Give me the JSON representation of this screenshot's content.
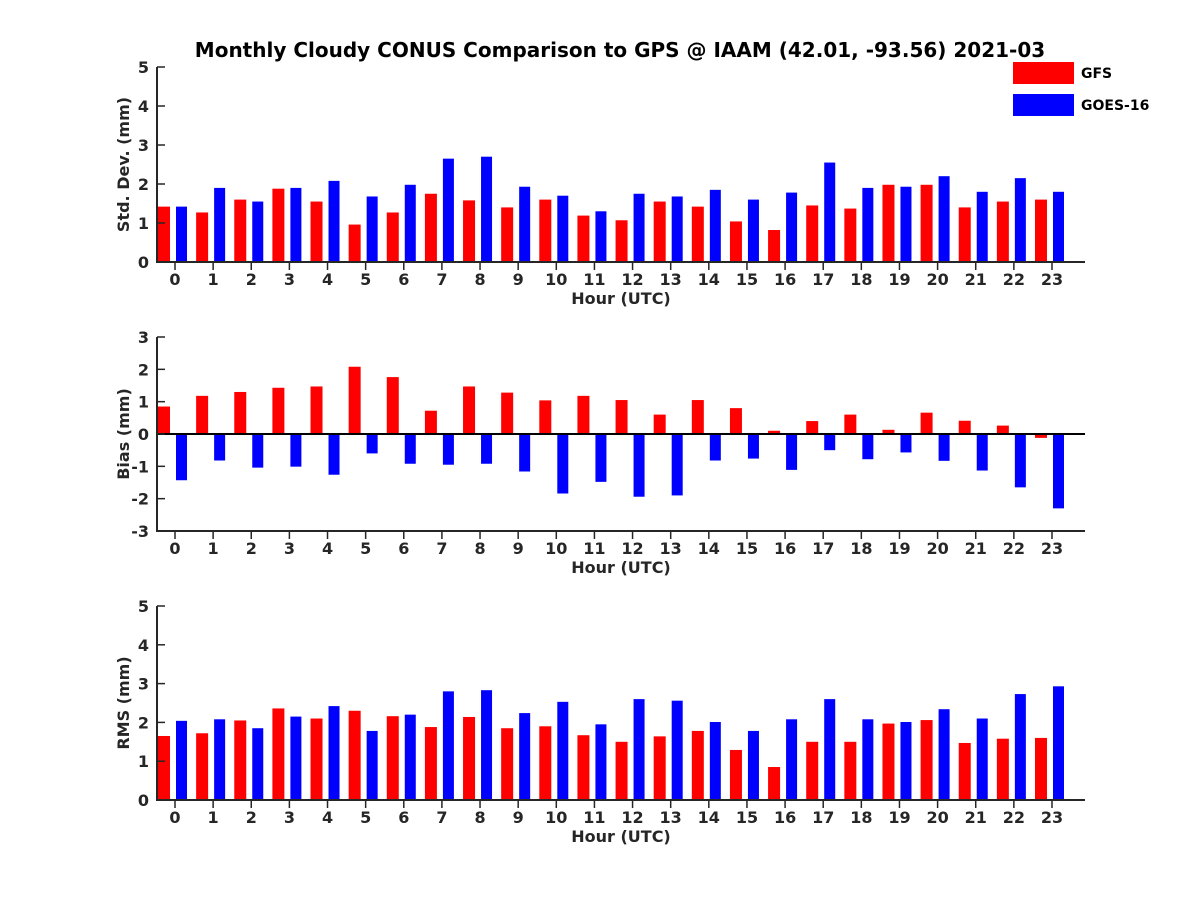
{
  "chart_data": {
    "title": "Monthly Cloudy CONUS Comparison to GPS @ IAAM (42.01, -93.56) 2021-03",
    "legend": {
      "placement": "top-right",
      "entries": [
        {
          "name": "GFS",
          "color": "#ff0000"
        },
        {
          "name": "GOES-16",
          "color": "#0000ff"
        }
      ]
    },
    "panels": [
      {
        "type": "bar",
        "ylabel": "Std. Dev. (mm)",
        "xlabel": "Hour (UTC)",
        "ylim": [
          0,
          5
        ],
        "yticks": [
          "0",
          "1",
          "2",
          "3",
          "4",
          "5"
        ],
        "categories": [
          "0",
          "1",
          "2",
          "3",
          "4",
          "5",
          "6",
          "7",
          "8",
          "9",
          "10",
          "11",
          "12",
          "13",
          "14",
          "15",
          "16",
          "17",
          "18",
          "19",
          "20",
          "21",
          "22",
          "23"
        ],
        "series": [
          {
            "name": "GFS",
            "color": "#ff0000",
            "values": [
              1.42,
              1.27,
              1.6,
              1.88,
              1.55,
              0.96,
              1.27,
              1.75,
              1.58,
              1.4,
              1.6,
              1.19,
              1.07,
              1.55,
              1.42,
              1.04,
              0.82,
              1.45,
              1.37,
              1.98,
              1.98,
              1.4,
              1.55,
              1.6
            ]
          },
          {
            "name": "GOES-16",
            "color": "#0000ff",
            "values": [
              1.42,
              1.9,
              1.55,
              1.9,
              2.08,
              1.68,
              1.98,
              2.65,
              2.7,
              1.93,
              1.7,
              1.3,
              1.75,
              1.68,
              1.85,
              1.6,
              1.78,
              2.55,
              1.9,
              1.93,
              2.2,
              1.8,
              2.15,
              1.8
            ]
          }
        ]
      },
      {
        "type": "bar",
        "ylabel": "Bias (mm)",
        "xlabel": "Hour (UTC)",
        "ylim": [
          -3,
          3
        ],
        "yticks": [
          "-3",
          "-2",
          "-1",
          "0",
          "1",
          "2",
          "3"
        ],
        "categories": [
          "0",
          "1",
          "2",
          "3",
          "4",
          "5",
          "6",
          "7",
          "8",
          "9",
          "10",
          "11",
          "12",
          "13",
          "14",
          "15",
          "16",
          "17",
          "18",
          "19",
          "20",
          "21",
          "22",
          "23"
        ],
        "series": [
          {
            "name": "GFS",
            "color": "#ff0000",
            "values": [
              0.85,
              1.18,
              1.3,
              1.43,
              1.47,
              2.08,
              1.76,
              0.72,
              1.47,
              1.28,
              1.04,
              1.18,
              1.05,
              0.6,
              1.05,
              0.8,
              0.1,
              0.4,
              0.6,
              0.13,
              0.66,
              0.41,
              0.26,
              -0.12
            ]
          },
          {
            "name": "GOES-16",
            "color": "#0000ff",
            "values": [
              -1.43,
              -0.82,
              -1.04,
              -1.01,
              -1.26,
              -0.6,
              -0.92,
              -0.95,
              -0.92,
              -1.16,
              -1.84,
              -1.48,
              -1.94,
              -1.9,
              -0.82,
              -0.76,
              -1.11,
              -0.5,
              -0.78,
              -0.57,
              -0.83,
              -1.13,
              -1.65,
              -2.3
            ]
          }
        ]
      },
      {
        "type": "bar",
        "ylabel": "RMS (mm)",
        "xlabel": "Hour (UTC)",
        "ylim": [
          0,
          5
        ],
        "yticks": [
          "0",
          "1",
          "2",
          "3",
          "4",
          "5"
        ],
        "categories": [
          "0",
          "1",
          "2",
          "3",
          "4",
          "5",
          "6",
          "7",
          "8",
          "9",
          "10",
          "11",
          "12",
          "13",
          "14",
          "15",
          "16",
          "17",
          "18",
          "19",
          "20",
          "21",
          "22",
          "23"
        ],
        "series": [
          {
            "name": "GFS",
            "color": "#ff0000",
            "values": [
              1.65,
              1.72,
              2.05,
              2.36,
              2.1,
              2.3,
              2.16,
              1.88,
              2.14,
              1.85,
              1.9,
              1.67,
              1.5,
              1.64,
              1.78,
              1.29,
              0.85,
              1.5,
              1.5,
              1.97,
              2.06,
              1.47,
              1.58,
              1.6
            ]
          },
          {
            "name": "GOES-16",
            "color": "#0000ff",
            "values": [
              2.04,
              2.08,
              1.85,
              2.15,
              2.42,
              1.78,
              2.2,
              2.8,
              2.83,
              2.24,
              2.53,
              1.95,
              2.6,
              2.56,
              2.01,
              1.78,
              2.08,
              2.6,
              2.08,
              2.01,
              2.34,
              2.1,
              2.73,
              2.93
            ]
          }
        ]
      }
    ]
  }
}
